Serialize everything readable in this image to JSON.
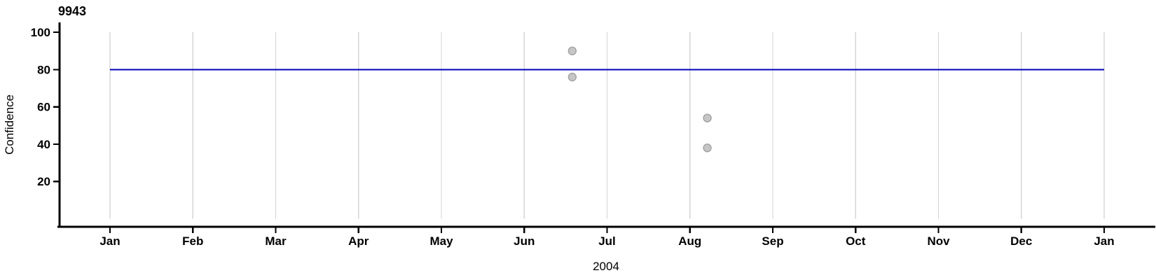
{
  "chart_data": {
    "type": "scatter",
    "title": "9943",
    "ylabel": "Confidence",
    "xlabel": "2004",
    "x_tick_labels": [
      "Jan",
      "Feb",
      "Mar",
      "Apr",
      "May",
      "Jun",
      "Jul",
      "Aug",
      "Sep",
      "Oct",
      "Nov",
      "Dec",
      "Jan"
    ],
    "y_ticks": [
      20,
      40,
      60,
      80,
      100
    ],
    "ylim": [
      -4,
      105
    ],
    "xlim_month_index": [
      -0.61,
      12.6
    ],
    "grid": "vertical-monthly-only",
    "legend": "none",
    "reference_line": {
      "y": 80,
      "x_start_month_index": 0,
      "x_end_month_index": 12,
      "color": "#0000bb"
    },
    "points": [
      {
        "x_month_index": 5.58,
        "value": 90
      },
      {
        "x_month_index": 5.58,
        "value": 76
      },
      {
        "x_month_index": 7.21,
        "value": 54
      },
      {
        "x_month_index": 7.21,
        "value": 38
      }
    ],
    "point_style": {
      "fill": "#c6c6c6",
      "stroke": "#9e9e9e",
      "radius": 5.5
    },
    "gridline_span_values": [
      0,
      100
    ],
    "colors": {
      "axis": "#000000",
      "text": "#000000",
      "grid": "#d4d4d4",
      "grid_year_boundary": "#c4c4c4",
      "background": "#ffffff"
    }
  }
}
